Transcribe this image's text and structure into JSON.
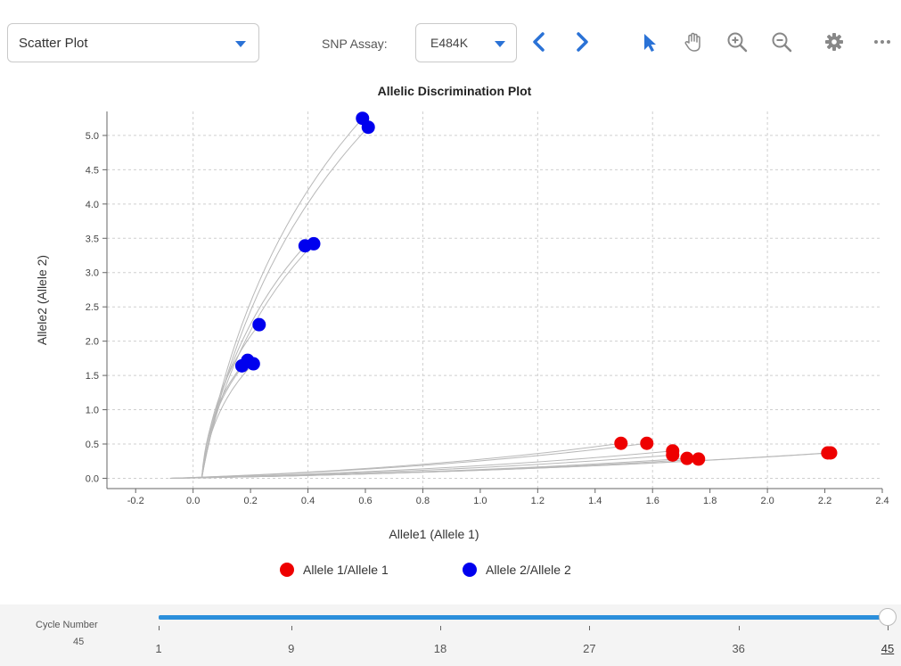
{
  "toolbar": {
    "plot_type": "Scatter Plot",
    "snp_label": "SNP Assay:",
    "snp_value": "E484K",
    "icons": [
      "chevron-left-icon",
      "chevron-right-icon",
      "pointer-icon",
      "pan-hand-icon",
      "zoom-in-icon",
      "zoom-out-icon",
      "gear-icon",
      "more-icon"
    ]
  },
  "colors": {
    "accent": "#2a72d6",
    "allele1": "#ee0000",
    "allele2": "#0000ee",
    "slider": "#2b8fdb"
  },
  "chart_data": {
    "type": "scatter",
    "title": "Allelic Discrimination Plot",
    "xlabel": "Allele1 (Allele 1)",
    "ylabel": "Allele2 (Allele 2)",
    "xlim": [
      -0.3,
      2.4
    ],
    "ylim": [
      -0.15,
      5.35
    ],
    "xticks": [
      "-0.2",
      "0.0",
      "0.2",
      "0.4",
      "0.6",
      "0.8",
      "1.0",
      "1.2",
      "1.4",
      "1.6",
      "1.8",
      "2.0",
      "2.2",
      "2.4"
    ],
    "yticks": [
      "0.0",
      "0.5",
      "1.0",
      "1.5",
      "2.0",
      "2.5",
      "3.0",
      "3.5",
      "4.0",
      "4.5",
      "5.0"
    ],
    "grid": true,
    "legend_position": "bottom",
    "series": [
      {
        "name": "Allele 1/Allele 1",
        "color": "#ee0000",
        "points": [
          [
            1.49,
            0.51
          ],
          [
            1.58,
            0.51
          ],
          [
            1.67,
            0.4
          ],
          [
            1.67,
            0.34
          ],
          [
            1.72,
            0.29
          ],
          [
            1.76,
            0.28
          ],
          [
            2.21,
            0.37
          ],
          [
            2.22,
            0.37
          ]
        ]
      },
      {
        "name": "Allele 2/Allele 2",
        "color": "#0000ee",
        "points": [
          [
            0.59,
            5.25
          ],
          [
            0.61,
            5.12
          ],
          [
            0.39,
            3.39
          ],
          [
            0.42,
            3.42
          ],
          [
            0.23,
            2.24
          ],
          [
            0.17,
            1.64
          ],
          [
            0.19,
            1.72
          ],
          [
            0.21,
            1.67
          ]
        ]
      }
    ]
  },
  "cycle": {
    "label": "Cycle Number",
    "value": "45",
    "ticks": [
      "1",
      "9",
      "18",
      "27",
      "36",
      "45"
    ],
    "min": 1,
    "max": 45,
    "current": 45
  }
}
